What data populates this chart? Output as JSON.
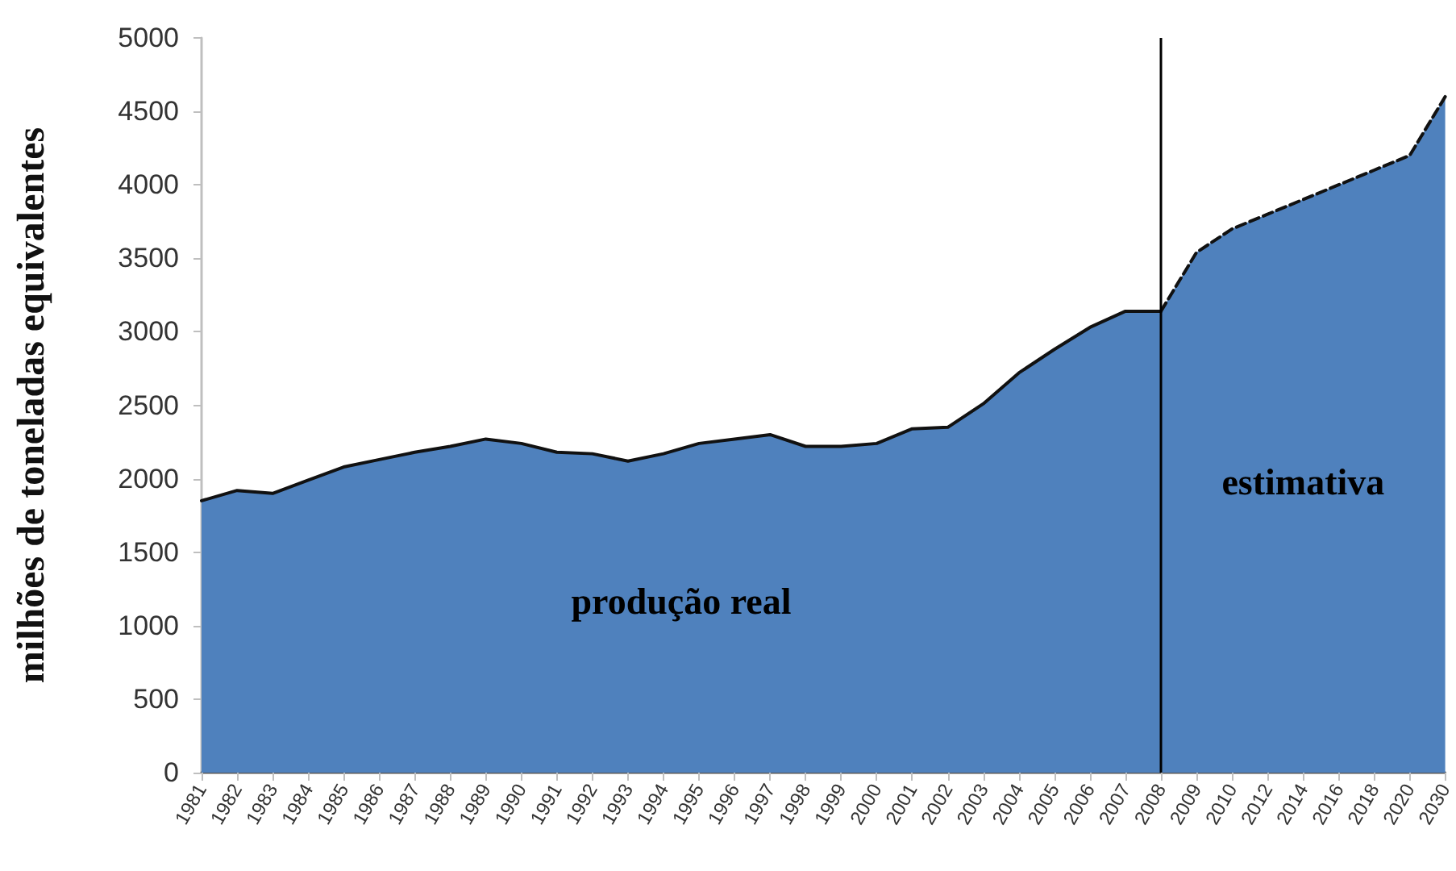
{
  "chart_data": {
    "type": "area",
    "ylabel": "milhões de toneladas equivalentes",
    "categories": [
      "1981",
      "1982",
      "1983",
      "1984",
      "1985",
      "1986",
      "1987",
      "1988",
      "1989",
      "1990",
      "1991",
      "1992",
      "1993",
      "1994",
      "1995",
      "1996",
      "1997",
      "1998",
      "1999",
      "2000",
      "2001",
      "2002",
      "2003",
      "2004",
      "2005",
      "2006",
      "2007",
      "2008",
      "2009",
      "2010",
      "2012",
      "2014",
      "2016",
      "2018",
      "2020",
      "2030"
    ],
    "series": [
      {
        "name": "produção real",
        "color": "#4f81bd",
        "line_style": "solid",
        "values": [
          1850,
          1920,
          1900,
          1990,
          2080,
          2130,
          2180,
          2220,
          2270,
          2240,
          2180,
          2170,
          2120,
          2170,
          2240,
          2270,
          2300,
          2220,
          2220,
          2240,
          2340,
          2350,
          2510,
          2720,
          2880,
          3030,
          3140,
          3140,
          null,
          null,
          null,
          null,
          null,
          null,
          null,
          null
        ]
      },
      {
        "name": "estimativa",
        "color": "#4f81bd",
        "line_style": "dashed",
        "values": [
          null,
          null,
          null,
          null,
          null,
          null,
          null,
          null,
          null,
          null,
          null,
          null,
          null,
          null,
          null,
          null,
          null,
          null,
          null,
          null,
          null,
          null,
          null,
          null,
          null,
          null,
          null,
          3140,
          3540,
          3700,
          3800,
          3900,
          4000,
          4100,
          4200,
          4600
        ]
      }
    ],
    "ylim": [
      0,
      5000
    ],
    "yticks": [
      0,
      500,
      1000,
      1500,
      2000,
      2500,
      3000,
      3500,
      4000,
      4500,
      5000
    ],
    "ref_lines": [
      {
        "axis": "x",
        "value": "2008",
        "color": "#000000",
        "line_style": "solid"
      }
    ],
    "grid": false,
    "marker": "none"
  }
}
